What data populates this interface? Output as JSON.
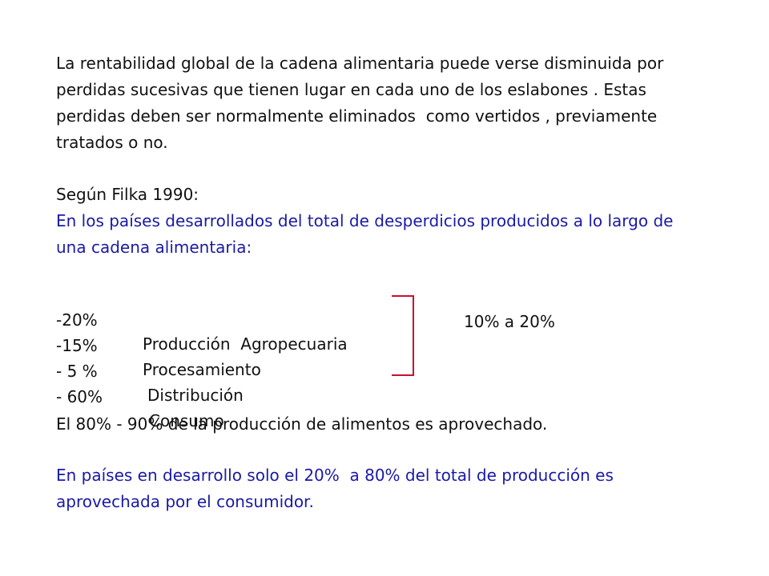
{
  "paragraph1": [
    "La rentabilidad global de la cadena alimentaria puede verse disminuida por",
    "perdidas sucesivas que tienen lugar en cada uno de los eslabones . Estas",
    "perdidas deben ser normalmente eliminados  como vertidos , previamente",
    "tratados o no."
  ],
  "source": "Según Filka 1990:",
  "developed_intro": [
    "En los países desarrollados del total de desperdicios producidos a lo largo de",
    "una cadena alimentaria:"
  ],
  "waste_items": [
    {
      "pct": "-20%",
      "label": "Producción  Agropecuaria"
    },
    {
      "pct": "-15%",
      "label": "Procesamiento"
    },
    {
      "pct": "- 5 %",
      "label": "Distribución"
    },
    {
      "pct": "- 60%",
      "label": "Consumo"
    }
  ],
  "bracket_range": "10% a 20%",
  "summary": "El 80% - 90% de la producción de alimentos es aprovechado.",
  "developing": [
    "En países en desarrollo solo el 20%  a 80% del total de producción es",
    "aprovechada por el consumidor."
  ],
  "colors": {
    "text": "#111111",
    "blue": "#1a1aa6",
    "bracket": "#c8102e"
  }
}
